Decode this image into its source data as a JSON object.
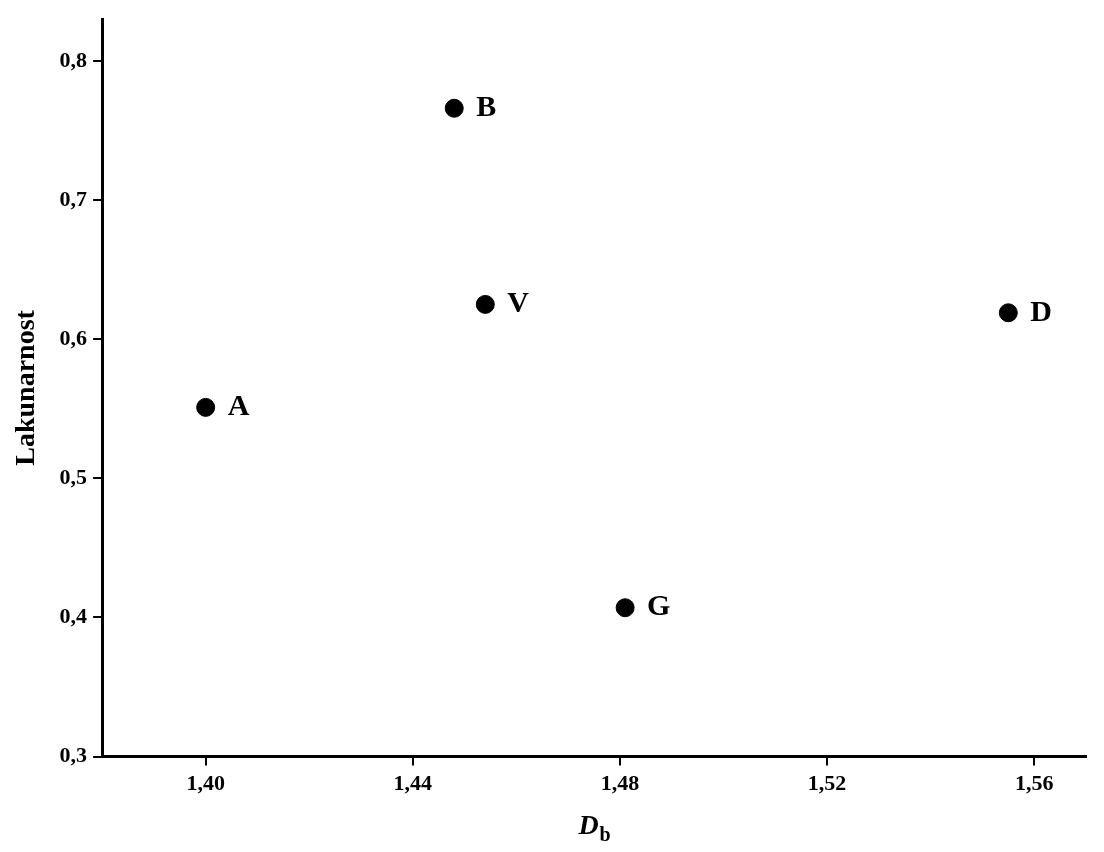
{
  "chart_data": {
    "type": "scatter",
    "x_label": "Db",
    "y_label": "Lakunarnost",
    "x": [
      1.4,
      1.448,
      1.454,
      1.555,
      1.481
    ],
    "values": [
      0.551,
      0.766,
      0.625,
      0.619,
      0.407
    ],
    "point_labels": [
      "A",
      "B",
      "V",
      "D",
      "G"
    ],
    "color": "#000000",
    "marker": "circle",
    "xlim": [
      1.38,
      1.57
    ],
    "ylim": [
      0.3,
      0.83
    ],
    "xticks": [
      {
        "value": 1.4,
        "label": "1,40"
      },
      {
        "value": 1.44,
        "label": "1,44"
      },
      {
        "value": 1.48,
        "label": "1,48"
      },
      {
        "value": 1.52,
        "label": "1,52"
      },
      {
        "value": 1.56,
        "label": "1,56"
      }
    ],
    "yticks": [
      {
        "value": 0.3,
        "label": "0,3"
      },
      {
        "value": 0.4,
        "label": "0,4"
      },
      {
        "value": 0.5,
        "label": "0,5"
      },
      {
        "value": 0.6,
        "label": "0,6"
      },
      {
        "value": 0.7,
        "label": "0,7"
      },
      {
        "value": 0.8,
        "label": "0,8"
      }
    ],
    "grid": false
  }
}
